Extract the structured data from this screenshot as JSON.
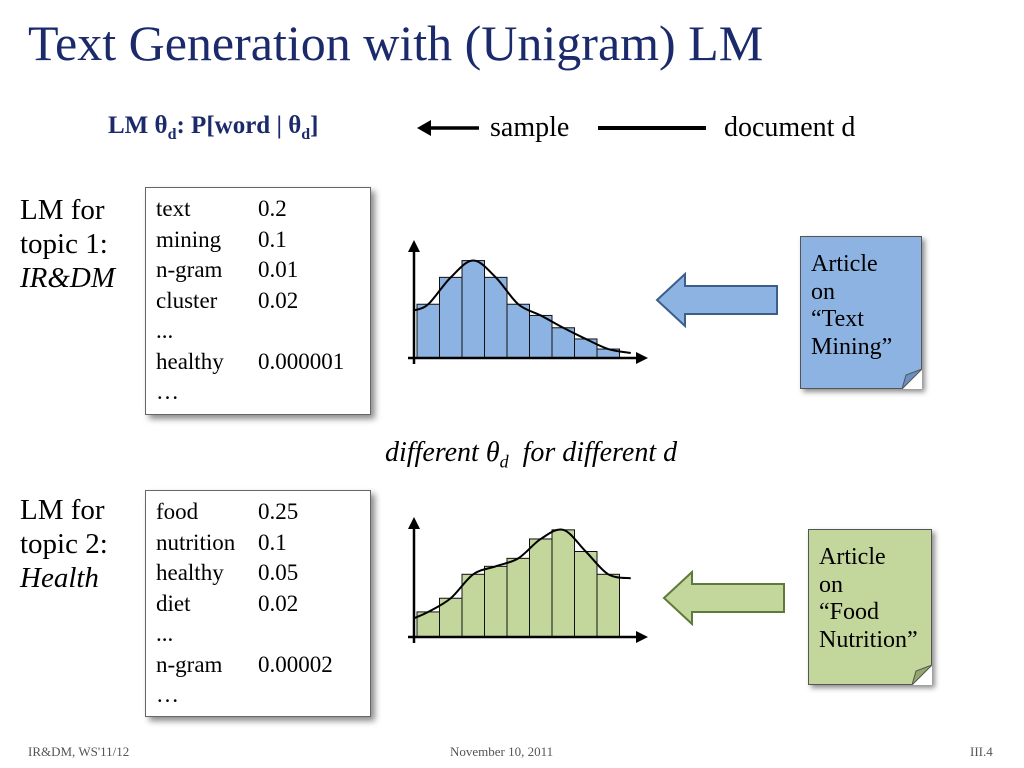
{
  "title": "Text Generation with (Unigram) LM",
  "header": {
    "lm_prefix": "LM θ",
    "lm_sub": "d",
    "lm_mid": ": P[word | θ",
    "lm_sub2": "d",
    "lm_suffix": "]",
    "sample": "sample",
    "document": "document d"
  },
  "topic1": {
    "label_line1": "LM for",
    "label_line2": "topic 1:",
    "label_line3": "IR&DM",
    "rows": [
      {
        "word": "text",
        "prob": "0.2"
      },
      {
        "word": "mining",
        "prob": "0.1"
      },
      {
        "word": "n-gram",
        "prob": "0.01"
      },
      {
        "word": "cluster",
        "prob": "0.02"
      },
      {
        "word": "...",
        "prob": ""
      },
      {
        "word": "healthy",
        "prob": "0.000001"
      },
      {
        "word": "…",
        "prob": ""
      }
    ],
    "histogram_levels": [
      0.48,
      0.72,
      0.87,
      0.72,
      0.48,
      0.38,
      0.27,
      0.17,
      0.08
    ],
    "color": "#8db3e2",
    "article": {
      "line1": "Article",
      "line2": "on",
      "line3": "“Text",
      "line4": "Mining”"
    }
  },
  "caption": {
    "pre": "different θ",
    "sub": "d",
    "post": "  for different d"
  },
  "topic2": {
    "label_line1": "LM for",
    "label_line2": "topic 2:",
    "label_line3": "Health",
    "rows": [
      {
        "word": "food",
        "prob": "0.25"
      },
      {
        "word": "nutrition",
        "prob": "0.1"
      },
      {
        "word": "healthy",
        "prob": "0.05"
      },
      {
        "word": "diet",
        "prob": "0.02"
      },
      {
        "word": "...",
        "prob": ""
      },
      {
        "word": "n-gram",
        "prob": "0.00002"
      },
      {
        "word": "…",
        "prob": ""
      }
    ],
    "histogram_levels": [
      0.22,
      0.34,
      0.55,
      0.62,
      0.69,
      0.86,
      0.94,
      0.75,
      0.55
    ],
    "color": "#c3d69b",
    "article": {
      "line1": "Article",
      "line2": "on",
      "line3": "“Food",
      "line4": "Nutrition”"
    }
  },
  "footer": {
    "left": "IR&DM, WS'11/12",
    "center": "November 10, 2011",
    "right": "III.4"
  }
}
